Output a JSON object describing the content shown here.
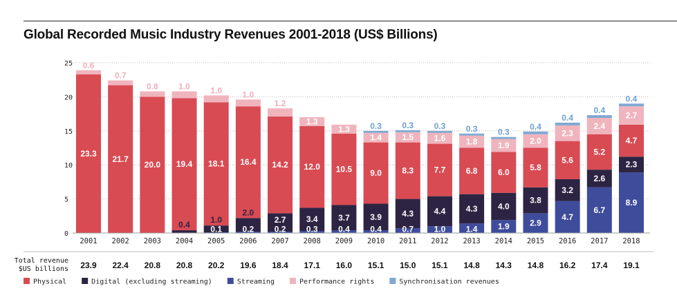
{
  "chart_data": {
    "type": "bar",
    "stacked": true,
    "title": "Global Recorded Music Industry Revenues 2001-2018 (US$ Billions)",
    "xlabel": "",
    "ylabel": "",
    "ylim": [
      0,
      25
    ],
    "yticks": [
      0,
      5,
      10,
      15,
      20,
      25
    ],
    "grid": true,
    "legend_position": "bottom",
    "categories": [
      "2001",
      "2002",
      "2003",
      "2004",
      "2005",
      "2006",
      "2007",
      "2008",
      "2009",
      "2010",
      "2011",
      "2012",
      "2013",
      "2014",
      "2015",
      "2016",
      "2017",
      "2018"
    ],
    "series": [
      {
        "name": "Streaming",
        "color": "#3f4c9c",
        "values": [
          0,
          0,
          0,
          0,
          0.1,
          0.2,
          0.2,
          0.3,
          0.4,
          0.4,
          0.7,
          1.0,
          1.4,
          1.9,
          2.9,
          4.7,
          6.7,
          8.9
        ]
      },
      {
        "name": "Digital (excluding streaming)",
        "color": "#2d2443",
        "values": [
          0,
          0,
          0,
          0.4,
          1.0,
          2.0,
          2.7,
          3.4,
          3.7,
          3.9,
          4.3,
          4.4,
          4.3,
          4.0,
          3.8,
          3.2,
          2.6,
          2.3
        ]
      },
      {
        "name": "Physical",
        "color": "#d84b53",
        "values": [
          23.3,
          21.7,
          20.0,
          19.4,
          18.1,
          16.4,
          14.2,
          12.0,
          10.5,
          9.0,
          8.3,
          7.7,
          6.8,
          6.0,
          5.8,
          5.6,
          5.2,
          4.7
        ]
      },
      {
        "name": "Performance rights",
        "color": "#f0b4bd",
        "values": [
          0.6,
          0.7,
          0.8,
          1.0,
          1.0,
          1.0,
          1.2,
          1.3,
          1.3,
          1.4,
          1.5,
          1.6,
          1.8,
          1.9,
          2.0,
          2.3,
          2.4,
          2.7
        ]
      },
      {
        "name": "Synchronisation revenues",
        "color": "#7fa9d2",
        "values": [
          0,
          0,
          0,
          0,
          0,
          0,
          0,
          0,
          0,
          0.3,
          0.3,
          0.3,
          0.3,
          0.3,
          0.4,
          0.4,
          0.4,
          0.4
        ]
      }
    ],
    "legend_order": [
      "Physical",
      "Digital (excluding streaming)",
      "Streaming",
      "Performance rights",
      "Synchronisation revenues"
    ],
    "totals_label_line1": "Total revenue",
    "totals_label_line2": "$US billions",
    "totals": [
      "23.9",
      "22.4",
      "20.8",
      "20.8",
      "20.2",
      "19.6",
      "18.4",
      "17.1",
      "16.0",
      "15.1",
      "15.0",
      "15.1",
      "14.8",
      "14.3",
      "14.8",
      "16.2",
      "17.4",
      "19.1"
    ]
  }
}
